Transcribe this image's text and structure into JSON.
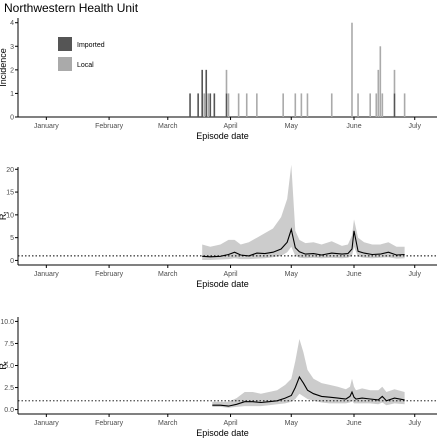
{
  "figure_title": "Northwestern Health Unit",
  "colors": {
    "imported": "#555555",
    "local": "#aaaaaa",
    "band": "#cccccc",
    "line": "#000000",
    "axis": "#000000",
    "ref_line": "#000000"
  },
  "chart_data": [
    {
      "type": "bar",
      "stacked": true,
      "title": "Northwestern Health Unit",
      "xlabel": "Episode date",
      "ylabel": "Incidence",
      "xlim": [
        0,
        207
      ],
      "ylim": [
        0,
        4.2
      ],
      "x_ticks": [
        {
          "label": "January",
          "x": 14
        },
        {
          "label": "February",
          "x": 45
        },
        {
          "label": "March",
          "x": 74
        },
        {
          "label": "April",
          "x": 105
        },
        {
          "label": "May",
          "x": 135
        },
        {
          "label": "June",
          "x": 166
        },
        {
          "label": "July",
          "x": 196
        }
      ],
      "y_ticks": [
        0,
        1,
        2,
        3,
        4
      ],
      "grid": false,
      "legend": {
        "position": "top-left",
        "entries": [
          "Imported",
          "Local"
        ]
      },
      "bars": [
        {
          "x": 85,
          "imported": 1,
          "local": 0
        },
        {
          "x": 89,
          "imported": 1,
          "local": 0
        },
        {
          "x": 91,
          "imported": 2,
          "local": 0
        },
        {
          "x": 92,
          "imported": 0,
          "local": 1
        },
        {
          "x": 93,
          "imported": 2,
          "local": 0
        },
        {
          "x": 94,
          "imported": 0,
          "local": 1
        },
        {
          "x": 95,
          "imported": 1,
          "local": 0
        },
        {
          "x": 97,
          "imported": 1,
          "local": 0
        },
        {
          "x": 103,
          "imported": 1,
          "local": 1
        },
        {
          "x": 104,
          "imported": 0,
          "local": 1
        },
        {
          "x": 109,
          "imported": 0,
          "local": 1
        },
        {
          "x": 113,
          "imported": 0,
          "local": 1
        },
        {
          "x": 118,
          "imported": 0,
          "local": 1
        },
        {
          "x": 131,
          "imported": 0,
          "local": 1
        },
        {
          "x": 137,
          "imported": 0,
          "local": 1
        },
        {
          "x": 140,
          "imported": 0,
          "local": 1
        },
        {
          "x": 143,
          "imported": 0,
          "local": 1
        },
        {
          "x": 155,
          "imported": 0,
          "local": 1
        },
        {
          "x": 165,
          "imported": 0,
          "local": 4
        },
        {
          "x": 168,
          "imported": 0,
          "local": 1
        },
        {
          "x": 174,
          "imported": 0,
          "local": 1
        },
        {
          "x": 177,
          "imported": 0,
          "local": 1
        },
        {
          "x": 178,
          "imported": 0,
          "local": 2
        },
        {
          "x": 179,
          "imported": 0,
          "local": 3
        },
        {
          "x": 180,
          "imported": 0,
          "local": 1
        },
        {
          "x": 186,
          "imported": 1,
          "local": 1
        },
        {
          "x": 191,
          "imported": 0,
          "local": 1
        }
      ]
    },
    {
      "type": "area",
      "xlabel": "Episode date",
      "ylabel": "R",
      "ylabel_subscript": "t",
      "xlim": [
        0,
        207
      ],
      "ylim": [
        -1,
        20.5
      ],
      "x_ticks": [
        {
          "label": "January",
          "x": 14
        },
        {
          "label": "February",
          "x": 45
        },
        {
          "label": "March",
          "x": 74
        },
        {
          "label": "April",
          "x": 105
        },
        {
          "label": "May",
          "x": 135
        },
        {
          "label": "June",
          "x": 166
        },
        {
          "label": "July",
          "x": 196
        }
      ],
      "y_ticks": [
        0,
        5,
        10,
        15,
        20
      ],
      "reference_line": 1,
      "grid": false,
      "series": [
        {
          "x": [
            91,
            95,
            100,
            104,
            107,
            110,
            114,
            118,
            122,
            126,
            130,
            133,
            135,
            137,
            139,
            142,
            146,
            150,
            155,
            160,
            163,
            165,
            166,
            168,
            171,
            175,
            179,
            183,
            187,
            191
          ],
          "mean": [
            0.9,
            0.8,
            0.9,
            1.3,
            1.8,
            1.2,
            1.0,
            1.6,
            1.5,
            1.8,
            2.5,
            4.0,
            6.8,
            2.8,
            1.9,
            1.4,
            1.5,
            1.2,
            1.6,
            1.4,
            1.5,
            2.5,
            6.5,
            2.0,
            1.6,
            1.3,
            1.4,
            1.8,
            1.2,
            1.3
          ],
          "lower": [
            0.1,
            0.1,
            0.2,
            0.3,
            0.5,
            0.3,
            0.3,
            0.4,
            0.5,
            0.7,
            1.0,
            1.8,
            3.0,
            1.0,
            0.6,
            0.5,
            0.6,
            0.5,
            0.6,
            0.5,
            0.6,
            1.0,
            3.0,
            0.8,
            0.6,
            0.5,
            0.6,
            0.7,
            0.4,
            0.5
          ],
          "upper": [
            3.5,
            3.0,
            3.5,
            4.5,
            4.5,
            3.5,
            4.0,
            5.0,
            6.0,
            7.0,
            9.5,
            13.5,
            21.0,
            6.5,
            4.5,
            3.8,
            4.0,
            3.5,
            4.2,
            3.2,
            3.5,
            5.5,
            9.0,
            5.0,
            4.0,
            3.5,
            3.5,
            4.0,
            3.0,
            3.0
          ]
        }
      ]
    },
    {
      "type": "area",
      "xlabel": "Episode date",
      "ylabel": "R",
      "ylabel_subscript": "t",
      "xlim": [
        0,
        207
      ],
      "ylim": [
        -0.5,
        10.5
      ],
      "x_ticks": [
        {
          "label": "January",
          "x": 14
        },
        {
          "label": "February",
          "x": 45
        },
        {
          "label": "March",
          "x": 74
        },
        {
          "label": "April",
          "x": 105
        },
        {
          "label": "May",
          "x": 135
        },
        {
          "label": "June",
          "x": 166
        },
        {
          "label": "July",
          "x": 196
        }
      ],
      "y_ticks": [
        "0.0",
        "2.5",
        "5.0",
        "7.5",
        "10.0"
      ],
      "reference_line": 1,
      "grid": false,
      "series": [
        {
          "x": [
            96,
            100,
            104,
            108,
            112,
            116,
            120,
            124,
            128,
            132,
            135,
            137,
            139,
            141,
            143,
            146,
            150,
            154,
            158,
            162,
            164,
            165,
            166,
            167,
            170,
            174,
            178,
            180,
            182,
            186,
            191
          ],
          "mean": [
            0.5,
            0.5,
            0.4,
            0.6,
            0.9,
            0.9,
            0.8,
            0.9,
            1.0,
            1.3,
            1.6,
            2.5,
            3.7,
            3.0,
            2.2,
            1.8,
            1.5,
            1.4,
            1.3,
            1.2,
            1.5,
            2.0,
            1.4,
            1.2,
            1.3,
            1.2,
            1.1,
            1.5,
            1.0,
            1.3,
            1.1
          ],
          "lower": [
            0.3,
            0.3,
            0.2,
            0.3,
            0.4,
            0.4,
            0.4,
            0.5,
            0.6,
            0.7,
            0.9,
            1.2,
            1.8,
            1.5,
            1.2,
            1.0,
            0.8,
            0.7,
            0.7,
            0.7,
            0.8,
            1.0,
            0.7,
            0.7,
            0.7,
            0.7,
            0.6,
            0.8,
            0.5,
            0.7,
            0.6
          ],
          "upper": [
            0.9,
            0.9,
            0.9,
            1.3,
            2.0,
            2.0,
            1.8,
            2.0,
            2.2,
            2.8,
            3.5,
            5.5,
            8.0,
            6.5,
            4.5,
            3.5,
            3.0,
            2.8,
            2.6,
            2.3,
            2.6,
            3.5,
            2.6,
            2.2,
            2.4,
            2.2,
            2.2,
            2.6,
            2.0,
            2.3,
            2.0
          ]
        }
      ]
    }
  ]
}
